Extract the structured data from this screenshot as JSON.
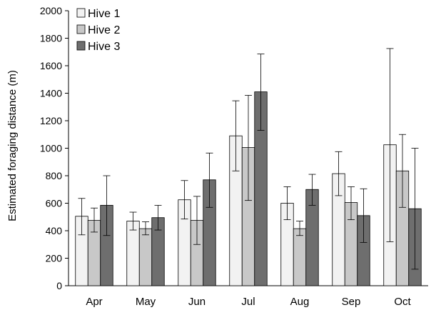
{
  "chart_data": {
    "type": "bar",
    "title": "",
    "xlabel": "",
    "ylabel": "Estimated foraging distance (m)",
    "ylim": [
      0,
      2000
    ],
    "yticks": [
      0,
      200,
      400,
      600,
      800,
      1000,
      1200,
      1400,
      1600,
      1800,
      2000
    ],
    "categories": [
      "Apr",
      "May",
      "Jun",
      "Jul",
      "Aug",
      "Sep",
      "Oct"
    ],
    "series": [
      {
        "name": "Hive 1",
        "color": "#f2f2f2",
        "values": [
          505,
          470,
          625,
          1090,
          600,
          815,
          1025
        ],
        "err_low": [
          370,
          405,
          485,
          835,
          480,
          655,
          320
        ],
        "err_high": [
          635,
          535,
          765,
          1345,
          720,
          975,
          1725
        ]
      },
      {
        "name": "Hive 2",
        "color": "#c8c8c8",
        "values": [
          475,
          415,
          475,
          1005,
          415,
          605,
          835
        ],
        "err_low": [
          390,
          370,
          300,
          620,
          365,
          480,
          570
        ],
        "err_high": [
          565,
          465,
          650,
          1385,
          470,
          720,
          1100
        ]
      },
      {
        "name": "Hive 3",
        "color": "#6e6e6e",
        "values": [
          585,
          495,
          770,
          1410,
          700,
          510,
          560
        ],
        "err_low": [
          365,
          405,
          570,
          1130,
          585,
          315,
          120
        ],
        "err_high": [
          800,
          585,
          965,
          1685,
          810,
          705,
          1000
        ]
      }
    ],
    "legend_position": "top-left",
    "grid": false,
    "error_bars": true
  }
}
